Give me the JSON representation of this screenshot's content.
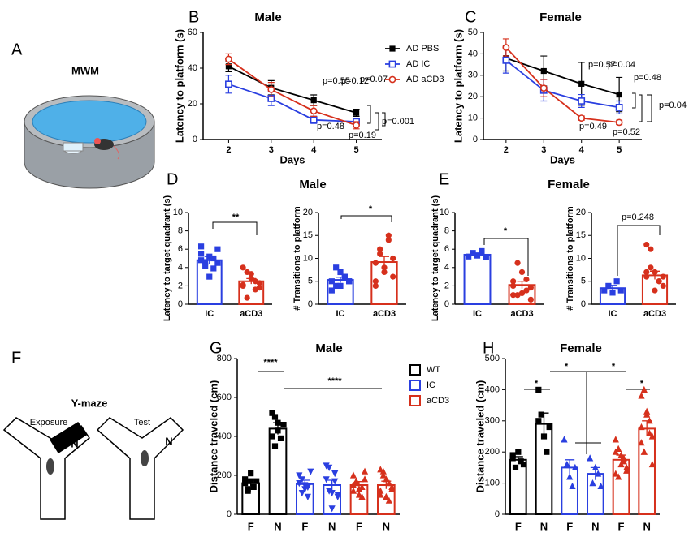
{
  "panel_labels": [
    "A",
    "F"
  ],
  "illustrations": {
    "mwm": "MWM",
    "ymaze": "Y-maze",
    "exposure": "Exposure",
    "test": "Test",
    "arm_1": "N",
    "arm_2": "N"
  },
  "chart_data": [
    {
      "type": "line",
      "panel": "B",
      "title": "Male",
      "x_label": "Days",
      "y_label": "Latency to platform (s)",
      "x": [
        2,
        3,
        4,
        5
      ],
      "xlim": [
        1.4,
        5.6
      ],
      "xticks": [
        2,
        3,
        4,
        5
      ],
      "ylim": [
        0,
        60
      ],
      "yticks": [
        0,
        20,
        40,
        60
      ],
      "legend": true,
      "series": [
        {
          "name": "AD PBS",
          "color": "#000000",
          "marker": "square",
          "values": [
            41,
            29,
            22,
            15
          ],
          "errors": [
            3,
            4,
            3,
            2
          ]
        },
        {
          "name": "AD IC",
          "color": "#2a3fe0",
          "marker": "open-square",
          "values": [
            31,
            23,
            11,
            10
          ],
          "errors": [
            5,
            4,
            2,
            2
          ]
        },
        {
          "name": "AD aCD3",
          "color": "#d6301c",
          "marker": "open-circle",
          "values": [
            45,
            28,
            16,
            8
          ],
          "errors": [
            3,
            4,
            3,
            2
          ]
        }
      ],
      "annotations": [
        "p=0.55",
        "p=0.12",
        "p=0.07",
        "p=0.48",
        "p=0.19",
        "p=0.001"
      ]
    },
    {
      "type": "line",
      "panel": "C",
      "title": "Female",
      "x_label": "Days",
      "y_label": "Latency to platform (s)",
      "x": [
        2,
        3,
        4,
        5
      ],
      "xlim": [
        1.4,
        5.6
      ],
      "xticks": [
        2,
        3,
        4,
        5
      ],
      "ylim": [
        0,
        50
      ],
      "yticks": [
        0,
        10,
        20,
        30,
        40,
        50
      ],
      "legend": false,
      "series": [
        {
          "color": "#000000",
          "marker": "square",
          "values": [
            38,
            32,
            26,
            21
          ],
          "errors": [
            6,
            7,
            10,
            8
          ]
        },
        {
          "color": "#2a3fe0",
          "marker": "open-square",
          "values": [
            37,
            23,
            18,
            15
          ],
          "errors": [
            6,
            5,
            3,
            3
          ]
        },
        {
          "color": "#d6301c",
          "marker": "open-circle",
          "values": [
            43,
            24,
            10,
            8
          ],
          "errors": [
            4,
            4,
            1,
            1
          ]
        }
      ],
      "annotations": [
        "p=0.57",
        "p=0.04",
        "p=0.48",
        "p=0.49",
        "p=0.52",
        "p=0.04"
      ]
    },
    {
      "type": "bar",
      "panel": "D",
      "title": "Male",
      "y_label": "Latency to target quadrant (s)",
      "categories": [
        "IC",
        "aCD3"
      ],
      "colors": [
        "#2a3fe0",
        "#d6301c"
      ],
      "markers": [
        "square",
        "circle"
      ],
      "values": [
        4.8,
        2.5
      ],
      "errors": [
        0.4,
        0.3
      ],
      "ylim": [
        0,
        10
      ],
      "yticks": [
        0,
        2,
        4,
        6,
        8,
        10
      ],
      "points": [
        [
          4.8,
          4.6,
          5.2,
          3.9,
          6.0,
          5.5,
          4.2,
          3.0,
          5.0,
          4.5,
          6.3
        ],
        [
          2.0,
          3.5,
          2.8,
          1.6,
          2.3,
          4.0,
          0.7,
          3.3,
          2.5,
          1.8,
          2.1
        ]
      ],
      "annotations": [
        "**"
      ]
    },
    {
      "type": "bar",
      "y_label": "# Transitions to platform",
      "categories": [
        "IC",
        "aCD3"
      ],
      "colors": [
        "#2a3fe0",
        "#d6301c"
      ],
      "markers": [
        "square",
        "circle"
      ],
      "values": [
        5.3,
        9.2
      ],
      "errors": [
        0.6,
        1.2
      ],
      "ylim": [
        0,
        20
      ],
      "yticks": [
        0,
        5,
        10,
        15,
        20
      ],
      "points": [
        [
          5,
          4,
          7,
          6,
          5,
          3,
          8,
          4,
          6,
          5
        ],
        [
          9,
          12,
          7,
          15,
          10,
          5,
          11,
          8,
          14,
          6,
          4
        ]
      ],
      "annotations": [
        "*"
      ]
    },
    {
      "type": "bar",
      "panel": "E",
      "title": "Female",
      "y_label": "Latency to target quadrant (s)",
      "categories": [
        "IC",
        "aCD3"
      ],
      "colors": [
        "#2a3fe0",
        "#d6301c"
      ],
      "markers": [
        "square",
        "circle"
      ],
      "values": [
        5.4,
        2.1
      ],
      "errors": [
        0.2,
        0.4
      ],
      "ylim": [
        0,
        10
      ],
      "yticks": [
        0,
        2,
        4,
        6,
        8,
        10
      ],
      "points": [
        [
          5.2,
          5.6,
          5.3,
          5.8,
          5.1
        ],
        [
          2,
          1,
          3.5,
          1.5,
          0.5,
          2.5,
          4.5,
          1.2,
          2.7,
          1.8,
          1.0
        ]
      ],
      "annotations": [
        "*"
      ]
    },
    {
      "type": "bar",
      "y_label": "# Transitions to platform",
      "categories": [
        "IC",
        "aCD3"
      ],
      "colors": [
        "#2a3fe0",
        "#d6301c"
      ],
      "markers": [
        "square",
        "circle"
      ],
      "values": [
        3.5,
        6.3
      ],
      "errors": [
        0.6,
        0.9
      ],
      "ylim": [
        0,
        20
      ],
      "yticks": [
        0,
        5,
        10,
        15,
        20
      ],
      "points": [
        [
          3,
          4,
          2.5,
          5,
          3
        ],
        [
          13,
          12,
          7,
          5,
          4,
          6,
          8,
          3,
          5,
          6,
          7
        ]
      ],
      "annotations": [
        "p=0.248"
      ]
    },
    {
      "type": "bar",
      "panel": "G",
      "title": "Male",
      "y_label": "Distance traveled (cm)",
      "categories": [
        "F",
        "N",
        "F",
        "N",
        "F",
        "N"
      ],
      "colors": [
        "#000000",
        "#000000",
        "#2a3fe0",
        "#2a3fe0",
        "#d6301c",
        "#d6301c"
      ],
      "markers": [
        "square",
        "square",
        "triangle-down",
        "triangle-down",
        "triangle",
        "triangle"
      ],
      "groups": [
        {
          "name": "WT",
          "color": "#000000"
        },
        {
          "name": "IC",
          "color": "#2a3fe0"
        },
        {
          "name": "aCD3",
          "color": "#d6301c"
        }
      ],
      "values": [
        160,
        440,
        155,
        150,
        150,
        150
      ],
      "errors": [
        15,
        30,
        20,
        25,
        18,
        20
      ],
      "ylim": [
        0,
        800
      ],
      "yticks": [
        0,
        200,
        400,
        600,
        800
      ],
      "points": [
        [
          160,
          120,
          210,
          140,
          170,
          180,
          130,
          170
        ],
        [
          520,
          500,
          430,
          390,
          460,
          400,
          350,
          470
        ],
        [
          200,
          180,
          130,
          90,
          220,
          160,
          110,
          150,
          140
        ],
        [
          250,
          240,
          30,
          210,
          90,
          180,
          120,
          110,
          170,
          100
        ],
        [
          200,
          160,
          100,
          140,
          220,
          120,
          170,
          130,
          90,
          180,
          150
        ],
        [
          230,
          200,
          90,
          160,
          130,
          100,
          220,
          180,
          70,
          140,
          120
        ]
      ],
      "annotations": [
        "****",
        "****"
      ]
    },
    {
      "type": "bar",
      "panel": "H",
      "title": "Female",
      "y_label": "Distance traveled (cm)",
      "categories": [
        "F",
        "N",
        "F",
        "N",
        "F",
        "N"
      ],
      "colors": [
        "#000000",
        "#000000",
        "#2a3fe0",
        "#2a3fe0",
        "#d6301c",
        "#d6301c"
      ],
      "markers": [
        "square",
        "square",
        "triangle",
        "triangle",
        "triangle",
        "triangle"
      ],
      "values": [
        175,
        290,
        150,
        130,
        175,
        275
      ],
      "errors": [
        10,
        35,
        25,
        20,
        15,
        25
      ],
      "ylim": [
        0,
        500
      ],
      "yticks": [
        0,
        100,
        200,
        300,
        400,
        500
      ],
      "points": [
        [
          180,
          150,
          200,
          170,
          160,
          190
        ],
        [
          400,
          320,
          250,
          200,
          280,
          300
        ],
        [
          240,
          160,
          120,
          90,
          150
        ],
        [
          180,
          100,
          150,
          130,
          90
        ],
        [
          240,
          210,
          190,
          170,
          150,
          200,
          120,
          160,
          180,
          140,
          130
        ],
        [
          380,
          400,
          330,
          300,
          250,
          230,
          200,
          320,
          260,
          160,
          280,
          200
        ]
      ],
      "annotations": [
        "*",
        "*",
        "*",
        "*"
      ]
    }
  ]
}
